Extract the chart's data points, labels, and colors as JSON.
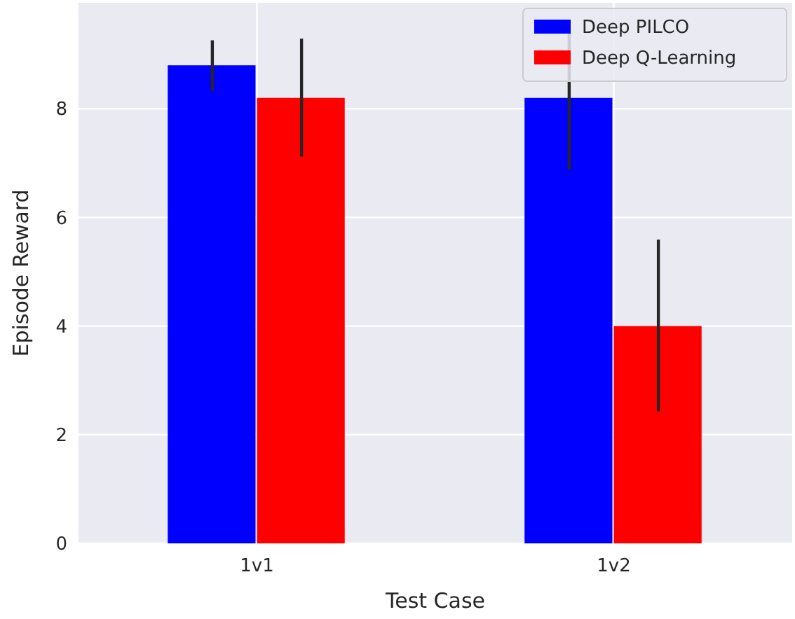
{
  "chart_data": {
    "type": "bar",
    "xlabel": "Test Case",
    "ylabel": "Episode Reward",
    "categories": [
      "1v1",
      "1v2"
    ],
    "series": [
      {
        "name": "Deep PILCO",
        "color": "#0000ff",
        "values": [
          8.8,
          8.2
        ],
        "errors": [
          [
            8.33,
            9.26
          ],
          [
            6.88,
            9.52
          ]
        ]
      },
      {
        "name": "Deep Q-Learning",
        "color": "#ff0000",
        "values": [
          8.2,
          4.0
        ],
        "errors": [
          [
            7.12,
            9.29
          ],
          [
            2.43,
            5.59
          ]
        ]
      }
    ],
    "ylim": [
      0,
      9.95
    ],
    "yticks": [
      0,
      2,
      4,
      6,
      8
    ],
    "grid": true,
    "legend": "top right"
  }
}
